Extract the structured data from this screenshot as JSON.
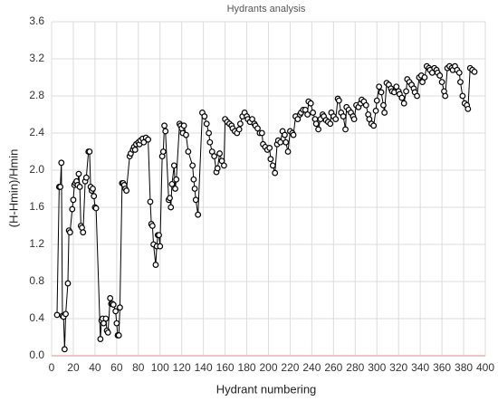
{
  "chart_data": {
    "type": "line",
    "title": "Hydrants analysis",
    "x_label": "Hydrant numbering",
    "y_label": "(H-Hmin)/Hmin",
    "color": "#000000",
    "marker_fill": "#ffffff",
    "grid": true,
    "xlim": [
      0,
      400
    ],
    "ylim": [
      0,
      3.6
    ],
    "xticks": [
      0,
      20,
      40,
      60,
      80,
      100,
      120,
      140,
      160,
      180,
      200,
      220,
      240,
      260,
      280,
      300,
      320,
      340,
      360,
      380,
      400
    ],
    "yticks": [
      {
        "value": 0,
        "label": "0.0"
      },
      0.4,
      0.8,
      1.2,
      1.6,
      {
        "value": 2,
        "label": "2.0"
      },
      2.4,
      2.8,
      3.2,
      3.6
    ],
    "x": [
      5,
      7,
      8,
      9,
      10,
      11,
      12,
      13,
      15,
      16,
      17,
      19,
      20,
      21,
      22,
      23,
      24,
      25,
      26,
      27,
      28,
      29,
      31,
      32,
      34,
      35,
      36,
      37,
      38,
      39,
      40,
      41,
      45,
      46,
      47,
      48,
      50,
      51,
      52,
      54,
      55,
      56,
      57,
      59,
      60,
      61,
      62,
      63,
      65,
      66,
      67,
      68,
      69,
      72,
      73,
      75,
      76,
      77,
      78,
      80,
      81,
      82,
      84,
      85,
      87,
      89,
      91,
      92,
      93,
      94,
      96,
      97,
      98,
      99,
      100,
      102,
      103,
      104,
      105,
      108,
      109,
      110,
      111,
      113,
      114,
      115,
      118,
      119,
      120,
      121,
      122,
      124,
      126,
      130,
      131,
      132,
      133,
      135,
      139,
      141,
      143,
      145,
      146,
      148,
      150,
      152,
      153,
      155,
      157,
      159,
      160,
      162,
      164,
      166,
      167,
      169,
      171,
      173,
      174,
      176,
      178,
      180,
      181,
      183,
      185,
      187,
      188,
      190,
      192,
      194,
      195,
      197,
      199,
      201,
      202,
      204,
      206,
      208,
      209,
      211,
      213,
      215,
      216,
      218,
      220,
      222,
      223,
      225,
      227,
      229,
      230,
      232,
      234,
      236,
      237,
      239,
      241,
      243,
      244,
      246,
      248,
      250,
      251,
      253,
      255,
      257,
      258,
      260,
      262,
      264,
      265,
      267,
      269,
      271,
      272,
      274,
      276,
      278,
      279,
      281,
      283,
      285,
      286,
      288,
      290,
      292,
      293,
      295,
      297,
      299,
      300,
      302,
      304,
      306,
      307,
      309,
      311,
      313,
      314,
      316,
      318,
      320,
      321,
      323,
      325,
      327,
      328,
      330,
      332,
      334,
      335,
      337,
      339,
      341,
      342,
      344,
      346,
      348,
      349,
      351,
      353,
      355,
      356,
      358,
      360,
      362,
      363,
      365,
      367,
      369,
      370,
      372,
      374,
      376,
      377,
      379,
      381,
      383,
      384,
      386,
      388,
      390
    ],
    "values": [
      0.44,
      1.82,
      1.82,
      2.08,
      0.43,
      0.42,
      0.07,
      0.45,
      0.78,
      1.35,
      1.33,
      1.58,
      1.68,
      1.84,
      1.86,
      1.88,
      1.84,
      1.96,
      1.82,
      1.4,
      1.38,
      1.33,
      1.88,
      1.92,
      2.2,
      2.2,
      1.82,
      1.78,
      1.8,
      1.72,
      1.6,
      1.59,
      0.18,
      0.38,
      0.4,
      0.35,
      0.4,
      0.27,
      0.25,
      0.62,
      0.56,
      0.56,
      0.55,
      0.48,
      0.35,
      0.22,
      0.22,
      0.52,
      1.86,
      1.86,
      1.84,
      1.8,
      1.78,
      2.15,
      2.18,
      2.22,
      2.25,
      2.22,
      2.28,
      2.3,
      2.28,
      2.32,
      2.34,
      2.3,
      2.35,
      2.33,
      1.66,
      1.42,
      1.4,
      1.2,
      0.98,
      1.18,
      1.3,
      1.3,
      1.18,
      2.15,
      2.2,
      2.48,
      2.42,
      1.68,
      1.7,
      1.6,
      1.85,
      2.05,
      1.8,
      1.9,
      2.5,
      2.48,
      2.45,
      2.4,
      2.48,
      2.38,
      2.2,
      2.05,
      1.9,
      1.8,
      1.68,
      1.52,
      2.62,
      2.58,
      2.5,
      2.4,
      2.3,
      2.2,
      2.15,
      1.98,
      2.02,
      2.18,
      2.1,
      2.05,
      2.55,
      2.52,
      2.5,
      2.48,
      2.45,
      2.42,
      2.4,
      2.44,
      2.5,
      2.58,
      2.62,
      2.58,
      2.55,
      2.52,
      2.55,
      2.5,
      2.48,
      2.45,
      2.4,
      2.4,
      2.28,
      2.25,
      2.22,
      2.24,
      2.12,
      2.05,
      1.97,
      2.28,
      2.32,
      2.3,
      2.42,
      2.38,
      2.3,
      2.2,
      2.42,
      2.4,
      2.38,
      2.58,
      2.55,
      2.6,
      2.62,
      2.65,
      2.65,
      2.6,
      2.74,
      2.72,
      2.62,
      2.55,
      2.5,
      2.44,
      2.55,
      2.6,
      2.58,
      2.54,
      2.52,
      2.5,
      2.62,
      2.58,
      2.55,
      2.77,
      2.75,
      2.62,
      2.58,
      2.44,
      2.68,
      2.65,
      2.62,
      2.58,
      2.55,
      2.7,
      2.68,
      2.72,
      2.76,
      2.74,
      2.7,
      2.6,
      2.55,
      2.5,
      2.48,
      2.64,
      2.75,
      2.9,
      2.84,
      2.7,
      2.62,
      2.94,
      2.92,
      2.88,
      2.85,
      2.84,
      2.9,
      2.85,
      2.82,
      2.78,
      2.72,
      2.85,
      2.98,
      2.95,
      2.92,
      2.88,
      2.84,
      2.8,
      3.0,
      3.02,
      2.95,
      3.0,
      3.12,
      3.1,
      3.08,
      3.05,
      3.1,
      3.08,
      3.05,
      3.02,
      2.95,
      2.85,
      2.8,
      3.1,
      3.12,
      3.1,
      3.08,
      3.12,
      3.08,
      3.05,
      2.95,
      2.8,
      2.72,
      2.7,
      2.66,
      3.1,
      3.08,
      3.06
    ]
  }
}
